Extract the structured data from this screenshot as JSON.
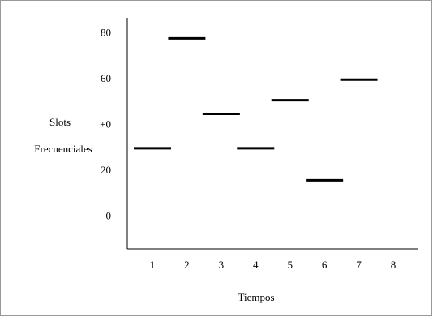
{
  "chart_data": {
    "type": "segment",
    "y_label_lines": [
      "Slots",
      "Frecuenciales"
    ],
    "x_label": "Tiempos",
    "categories": [
      "1",
      "2",
      "3",
      "4",
      "5",
      "6",
      "7",
      "8"
    ],
    "values": [
      30,
      78,
      45,
      30,
      51,
      16,
      60,
      null
    ],
    "color": "#000000",
    "ylim": [
      -14,
      87
    ],
    "yticks": [
      0,
      20,
      {
        "value": 40,
        "label": "+0"
      },
      60,
      80
    ],
    "grid": false
  }
}
